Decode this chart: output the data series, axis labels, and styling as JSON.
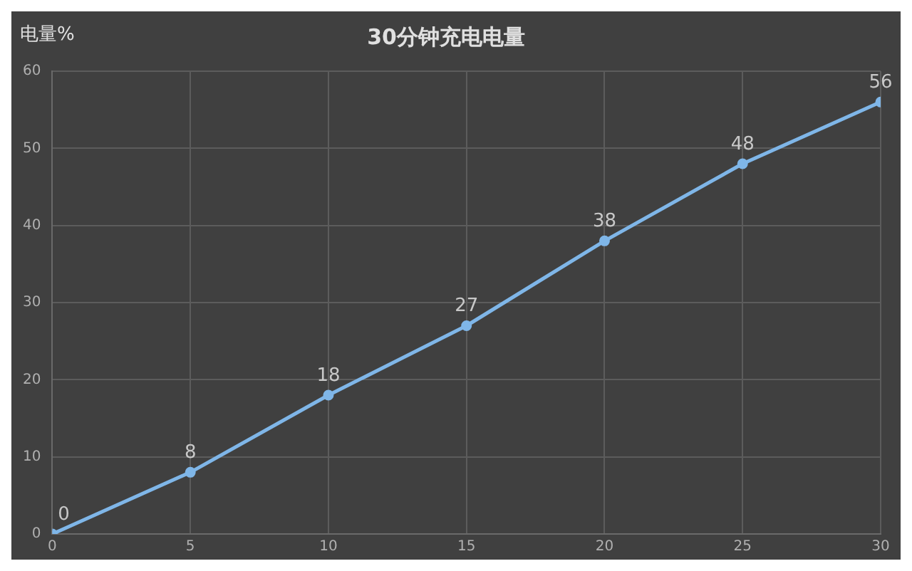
{
  "chart_data": {
    "type": "line",
    "title": "30分钟充电电量",
    "ylabel": "电量%",
    "x": [
      0,
      5,
      10,
      15,
      20,
      25,
      30
    ],
    "series": [
      {
        "color": "#7fb6e8",
        "values": [
          0,
          8,
          18,
          27,
          38,
          48,
          56
        ]
      }
    ],
    "xlim": [
      0,
      30
    ],
    "xticks": [
      0,
      5,
      10,
      15,
      20,
      25,
      30
    ],
    "ylim": [
      0,
      60
    ],
    "yticks": [
      0,
      10,
      20,
      30,
      40,
      50,
      60
    ],
    "grid": true,
    "legend": false,
    "marker": "circle",
    "line_style": "solid",
    "data_labels": true
  }
}
